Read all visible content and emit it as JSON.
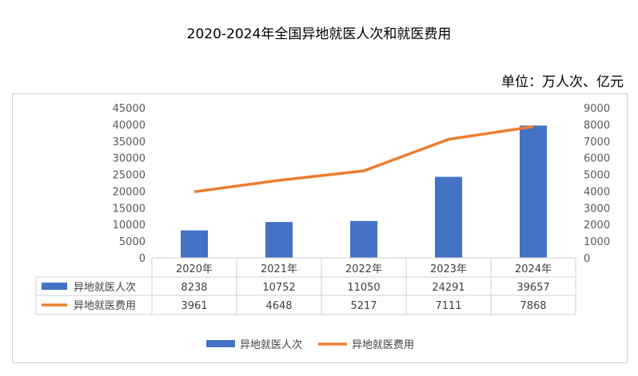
{
  "title": "2020-2024年全国异地就医人次和就医费用",
  "unit_label": "单位：万人次、亿元",
  "chart_data": {
    "type": "bar+line",
    "categories": [
      "2020年",
      "2021年",
      "2022年",
      "2023年",
      "2024年"
    ],
    "series": [
      {
        "name": "异地就医人次",
        "type": "bar",
        "axis": "left",
        "color": "#4472C4",
        "values": [
          8238,
          10752,
          11050,
          24291,
          39657
        ]
      },
      {
        "name": "异地就医费用",
        "type": "line",
        "axis": "right",
        "color": "#ED7D31",
        "values": [
          3961,
          4648,
          5217,
          7111,
          7868
        ]
      }
    ],
    "left_axis": {
      "ylim": [
        0,
        45000
      ],
      "ticks": [
        "0",
        "5000",
        "10000",
        "15000",
        "20000",
        "25000",
        "30000",
        "35000",
        "40000",
        "45000"
      ]
    },
    "right_axis": {
      "ylim": [
        0,
        9000
      ],
      "ticks": [
        "0",
        "1000",
        "2000",
        "3000",
        "4000",
        "5000",
        "6000",
        "7000",
        "8000",
        "9000"
      ]
    },
    "grid": false,
    "data_table": true,
    "legend_placement": "bottom"
  }
}
